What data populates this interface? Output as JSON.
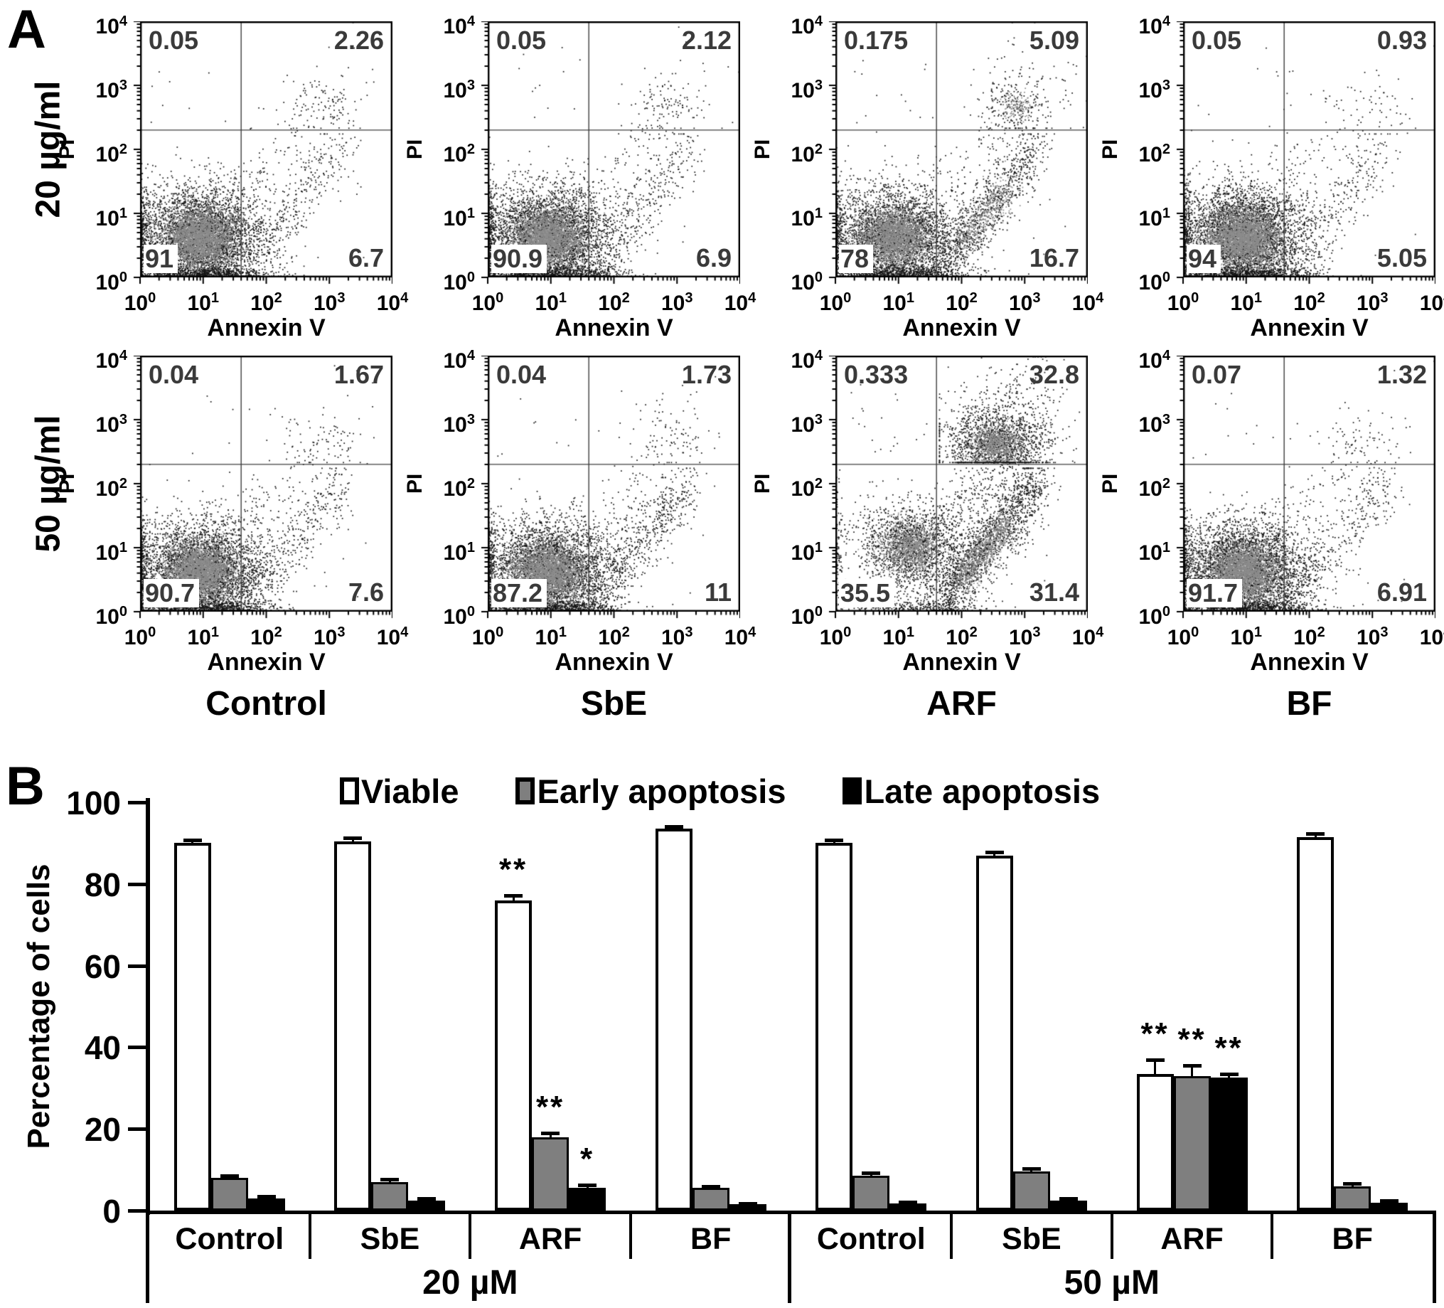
{
  "figure": {
    "panel_a_letter": "A",
    "panel_b_letter": "B"
  },
  "chart_data": [
    {
      "type": "scatter",
      "subtype": "flow-cytometry-density-plots",
      "xlabel": "Annexin V",
      "ylabel": "PI",
      "x_scale": "log10",
      "y_scale": "log10",
      "x_range": [
        1,
        10000
      ],
      "y_range": [
        1,
        10000
      ],
      "tick_exponents": [
        0,
        1,
        2,
        3,
        4
      ],
      "quadrant_gate_x": 40,
      "quadrant_gate_y": 200,
      "row_labels": [
        "20 µg/ml",
        "50 µg/ml"
      ],
      "col_labels": [
        "Control",
        "SbE",
        "ARF",
        "BF"
      ],
      "plots": [
        {
          "row": "20 µg/ml",
          "treatment": "Control",
          "quadrants": {
            "upper_left": 0.05,
            "upper_right": 2.26,
            "lower_left": 91,
            "lower_right": 6.7
          }
        },
        {
          "row": "20 µg/ml",
          "treatment": "SbE",
          "quadrants": {
            "upper_left": 0.05,
            "upper_right": 2.12,
            "lower_left": 90.9,
            "lower_right": 6.9
          }
        },
        {
          "row": "20 µg/ml",
          "treatment": "ARF",
          "quadrants": {
            "upper_left": 0.175,
            "upper_right": 5.09,
            "lower_left": 78,
            "lower_right": 16.7
          }
        },
        {
          "row": "20 µg/ml",
          "treatment": "BF",
          "quadrants": {
            "upper_left": 0.05,
            "upper_right": 0.93,
            "lower_left": 94,
            "lower_right": 5.05
          }
        },
        {
          "row": "50 µg/ml",
          "treatment": "Control",
          "quadrants": {
            "upper_left": 0.04,
            "upper_right": 1.67,
            "lower_left": 90.7,
            "lower_right": 7.6
          }
        },
        {
          "row": "50 µg/ml",
          "treatment": "SbE",
          "quadrants": {
            "upper_left": 0.04,
            "upper_right": 1.73,
            "lower_left": 87.2,
            "lower_right": 11
          }
        },
        {
          "row": "50 µg/ml",
          "treatment": "ARF",
          "quadrants": {
            "upper_left": 0.333,
            "upper_right": 32.8,
            "lower_left": 35.5,
            "lower_right": 31.4
          }
        },
        {
          "row": "50 µg/ml",
          "treatment": "BF",
          "quadrants": {
            "upper_left": 0.07,
            "upper_right": 1.32,
            "lower_left": 91.7,
            "lower_right": 6.91
          }
        }
      ]
    },
    {
      "type": "bar",
      "title": "",
      "xlabel": "",
      "ylabel": "Percentage of cells",
      "ylim": [
        0,
        100
      ],
      "yticks": [
        0,
        20,
        40,
        60,
        80,
        100
      ],
      "grid": false,
      "legend_position": "top",
      "legend": [
        {
          "label": "Viable",
          "color": "#ffffff"
        },
        {
          "label": "Early apoptosis",
          "color": "#7f7f7f"
        },
        {
          "label": "Late apoptosis",
          "color": "#000000"
        }
      ],
      "group_blocks": [
        {
          "label": "20 µM",
          "categories": [
            "Control",
            "SbE",
            "ARF",
            "BF"
          ]
        },
        {
          "label": "50 µM",
          "categories": [
            "Control",
            "SbE",
            "ARF",
            "BF"
          ]
        }
      ],
      "categories": [
        "Control 20 µM",
        "SbE 20 µM",
        "ARF 20 µM",
        "BF 20 µM",
        "Control 50 µM",
        "SbE 50 µM",
        "ARF 50 µM",
        "BF 50 µM"
      ],
      "series": [
        {
          "name": "Viable",
          "color": "#ffffff",
          "values": [
            90,
            90.5,
            76,
            93.5,
            90,
            87,
            33.5,
            91.5
          ],
          "errors": [
            0.8,
            0.8,
            1.2,
            0.6,
            0.8,
            0.8,
            3.5,
            0.8
          ],
          "significance": [
            "",
            "",
            "**",
            "",
            "",
            "",
            "**",
            ""
          ]
        },
        {
          "name": "Early apoptosis",
          "color": "#7f7f7f",
          "values": [
            8,
            7,
            18,
            5.5,
            8.5,
            9.5,
            33,
            6
          ],
          "errors": [
            0.6,
            0.7,
            1,
            0.5,
            0.7,
            0.7,
            2.5,
            0.6
          ],
          "significance": [
            "",
            "",
            "**",
            "",
            "",
            "",
            "**",
            ""
          ]
        },
        {
          "name": "Late apoptosis",
          "color": "#000000",
          "values": [
            3,
            2.5,
            5.5,
            1.5,
            1.8,
            2.5,
            32.5,
            2
          ],
          "errors": [
            0.4,
            0.4,
            0.7,
            0.3,
            0.3,
            0.5,
            1,
            0.4
          ],
          "significance": [
            "",
            "",
            "*",
            "",
            "",
            "",
            "**",
            ""
          ]
        }
      ]
    }
  ]
}
